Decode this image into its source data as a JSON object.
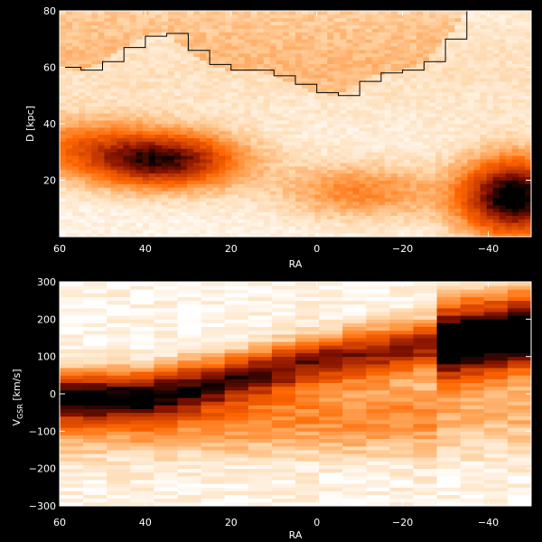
{
  "chart_data": [
    {
      "type": "heatmap",
      "panel": "top",
      "xlabel": "RA",
      "ylabel": "D [kpc]",
      "xlim": [
        60,
        -50
      ],
      "ylim": [
        0,
        80
      ],
      "x_ticks": [
        60,
        40,
        20,
        0,
        -20,
        -40
      ],
      "x_tick_labels": [
        "60",
        "40",
        "20",
        "0",
        "−20",
        "−40"
      ],
      "y_ticks": [
        20,
        40,
        60,
        80
      ],
      "y_tick_labels": [
        "20",
        "40",
        "60",
        "80"
      ],
      "colormap": [
        "#ffffff",
        "#ffdcb4",
        "#ffa050",
        "#ff6600",
        "#d04000",
        "#801000",
        "#000000"
      ],
      "density_features": [
        {
          "ra": 36,
          "d": 27,
          "strength": 0.85
        },
        {
          "ra": -46,
          "d": 14,
          "strength": 1.0
        },
        {
          "ra": -10,
          "d": 16,
          "strength": 0.35
        },
        {
          "ra": 58,
          "d": 33,
          "strength": 0.3
        }
      ],
      "limit_line": {
        "ra": [
          60,
          55,
          50,
          45,
          40,
          35,
          30,
          25,
          20,
          15,
          10,
          5,
          0,
          -5,
          -10,
          -15,
          -20,
          -25,
          -30,
          -35
        ],
        "d": [
          60,
          59,
          62,
          67,
          71,
          72,
          66,
          61,
          59,
          59,
          57,
          54,
          51,
          50,
          55,
          58,
          59,
          62,
          70,
          80
        ]
      }
    },
    {
      "type": "heatmap",
      "panel": "bottom",
      "xlabel": "RA",
      "ylabel": "V",
      "ylabel_sub": "GSR",
      "ylabel_units": " [km/s]",
      "xlim": [
        60,
        -50
      ],
      "ylim": [
        -300,
        300
      ],
      "x_ticks": [
        60,
        40,
        20,
        0,
        -20,
        -40
      ],
      "x_tick_labels": [
        "60",
        "40",
        "20",
        "0",
        "−20",
        "−40"
      ],
      "y_ticks": [
        -300,
        -200,
        -100,
        0,
        100,
        200,
        300
      ],
      "y_tick_labels": [
        "−300",
        "−200",
        "−100",
        "0",
        "100",
        "200",
        "300"
      ],
      "colormap": [
        "#ffffff",
        "#ffdcb4",
        "#ffa050",
        "#ff6600",
        "#d04000",
        "#801000",
        "#000000"
      ],
      "ridge": {
        "ra": [
          60,
          40,
          20,
          0,
          -20,
          -40,
          -50
        ],
        "v": [
          -5,
          -5,
          40,
          90,
          120,
          150,
          170
        ]
      }
    }
  ]
}
